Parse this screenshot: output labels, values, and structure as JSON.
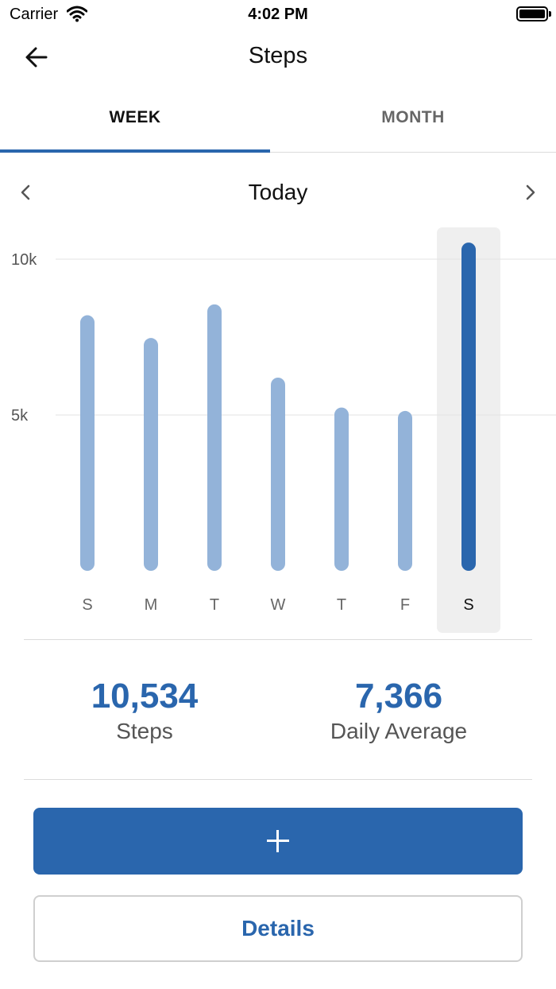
{
  "status_bar": {
    "carrier": "Carrier",
    "time": "4:02 PM"
  },
  "nav": {
    "title": "Steps",
    "back_icon": "arrow-left-icon"
  },
  "tabs": [
    {
      "label": "WEEK",
      "selected": true
    },
    {
      "label": "MONTH",
      "selected": false
    }
  ],
  "period": {
    "label": "Today",
    "prev_icon": "chevron-left-icon",
    "next_icon": "chevron-right-icon"
  },
  "chart_data": {
    "type": "bar",
    "categories": [
      "S",
      "M",
      "T",
      "W",
      "T",
      "F",
      "S"
    ],
    "values": [
      8200,
      7470,
      8550,
      6200,
      5240,
      5130,
      10534
    ],
    "selected_index": 6,
    "y_ticks": [
      {
        "value": 5000,
        "label": "5k"
      },
      {
        "value": 10000,
        "label": "10k"
      }
    ],
    "ylim": [
      0,
      10534
    ],
    "grid": true,
    "colors": {
      "bar": "#93b3d9",
      "selected_bar": "#2a66ad",
      "selected_bg": "#efefef"
    }
  },
  "summary": {
    "steps_value": "10,534",
    "steps_label": "Steps",
    "average_value": "7,366",
    "average_label": "Daily Average"
  },
  "actions": {
    "add_icon": "plus-icon",
    "details_label": "Details"
  },
  "colors": {
    "accent": "#2a66ad"
  }
}
